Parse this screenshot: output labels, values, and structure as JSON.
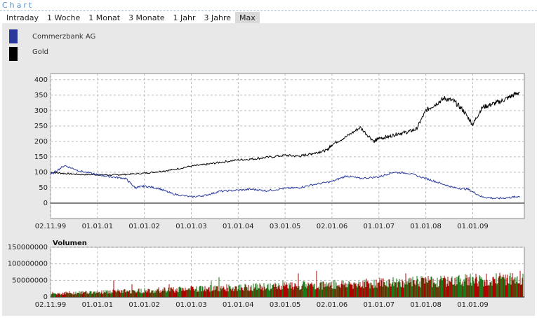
{
  "header": {
    "title": "Chart"
  },
  "tabs": [
    {
      "label": "Intraday"
    },
    {
      "label": "1 Woche"
    },
    {
      "label": "1 Monat"
    },
    {
      "label": "3 Monate"
    },
    {
      "label": "1 Jahr"
    },
    {
      "label": "3 Jahre"
    },
    {
      "label": "Max",
      "active": true
    }
  ],
  "legend": [
    {
      "label": "Commerzbank AG",
      "color": "#2a3a9c"
    },
    {
      "label": "Gold",
      "color": "#000000"
    }
  ],
  "chart_data": [
    {
      "type": "line",
      "x_labels": [
        "02.11.99",
        "01.01.01",
        "01.01.02",
        "01.01.03",
        "01.01.04",
        "03.01.05",
        "02.01.06",
        "01.01.07",
        "01.01.08",
        "01.01.09"
      ],
      "ylim": [
        -50,
        420
      ],
      "y_ticks": [
        0,
        50,
        100,
        150,
        200,
        250,
        300,
        350,
        400
      ],
      "grid": true,
      "series": [
        {
          "name": "Gold",
          "color": "#000000",
          "x": [
            0,
            0.3,
            0.6,
            1,
            1.3,
            1.6,
            2,
            2.3,
            2.6,
            3,
            3.3,
            3.6,
            4,
            4.3,
            4.6,
            5,
            5.3,
            5.5,
            5.7,
            5.9,
            6,
            6.3,
            6.6,
            6.9,
            7,
            7.2,
            7.4,
            7.6,
            7.8,
            8,
            8.2,
            8.4,
            8.6,
            8.8,
            9,
            9.2,
            9.4,
            9.6,
            9.8,
            10
          ],
          "values": [
            100,
            96,
            93,
            92,
            91,
            93,
            97,
            102,
            108,
            120,
            125,
            132,
            140,
            143,
            148,
            155,
            152,
            158,
            165,
            172,
            190,
            215,
            245,
            200,
            210,
            215,
            225,
            230,
            240,
            300,
            320,
            340,
            330,
            300,
            255,
            310,
            320,
            330,
            345,
            360
          ]
        },
        {
          "name": "Commerzbank AG",
          "color": "#2a3a9c",
          "x": [
            0,
            0.3,
            0.6,
            1,
            1.3,
            1.6,
            1.8,
            2,
            2.3,
            2.6,
            3,
            3.3,
            3.6,
            4,
            4.3,
            4.6,
            5,
            5.3,
            5.6,
            6,
            6.3,
            6.6,
            7,
            7.3,
            7.6,
            8,
            8.3,
            8.6,
            8.9,
            9.2,
            9.5,
            9.8,
            10
          ],
          "values": [
            92,
            122,
            105,
            92,
            85,
            80,
            50,
            55,
            48,
            30,
            20,
            25,
            38,
            42,
            45,
            40,
            48,
            50,
            60,
            70,
            88,
            80,
            85,
            100,
            98,
            80,
            65,
            50,
            45,
            20,
            15,
            18,
            22
          ]
        }
      ]
    },
    {
      "type": "bar",
      "title": "Volumen",
      "x_labels": [
        "02.11.99",
        "01.01.01",
        "01.01.02",
        "01.01.03",
        "01.01.04",
        "03.01.05",
        "02.01.06",
        "01.01.07",
        "01.01.08",
        "01.01.09"
      ],
      "ylim": [
        0,
        150000000
      ],
      "y_ticks": [
        "0",
        "50000000",
        "100000000",
        "150000000"
      ],
      "grid": true,
      "colors": {
        "up": "#1a7a1a",
        "down": "#b00000"
      }
    }
  ]
}
